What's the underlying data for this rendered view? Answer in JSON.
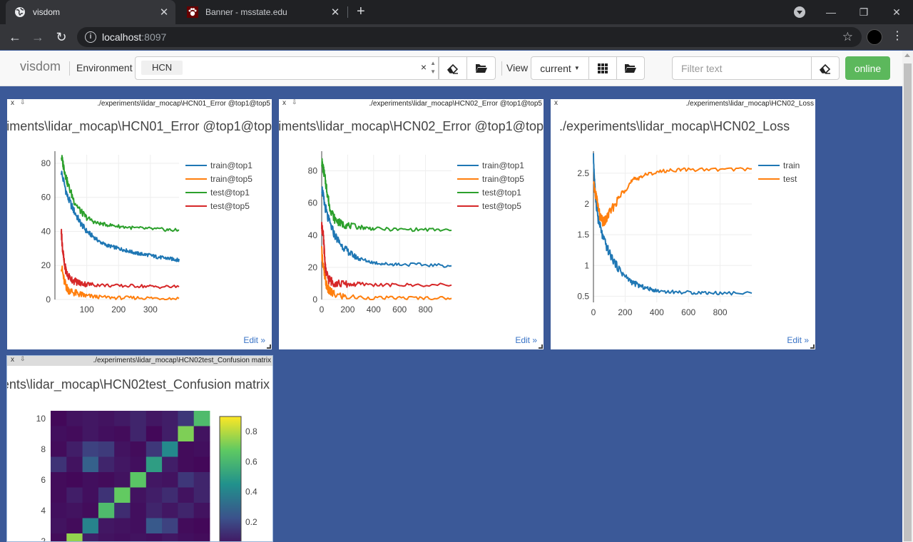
{
  "browser": {
    "tabs": [
      {
        "title": "visdom",
        "close": "✕"
      },
      {
        "title": "Banner - msstate.edu",
        "close": "✕"
      }
    ],
    "new_tab": "+",
    "window_controls": {
      "minimize": "—",
      "restore": "❐",
      "close": "✕"
    },
    "url_host": "localhost",
    "url_port": ":8097"
  },
  "app": {
    "brand": "visdom",
    "environment_label": "Environment",
    "environment_chip": "HCN",
    "environment_clear": "×",
    "view_label": "View",
    "view_select": "current",
    "filter_placeholder": "Filter text",
    "status_button": "online"
  },
  "panes": [
    {
      "path": "./experiments\\lidar_mocap\\HCN01_Error @top1@top5",
      "title": "./experiments\\lidar_mocap\\HCN01_Error @top1@top5",
      "edit": "Edit »"
    },
    {
      "path": "./experiments\\lidar_mocap\\HCN02_Error @top1@top5",
      "title": "./experiments\\lidar_mocap\\HCN02_Error @top1@top5",
      "edit": "Edit »"
    },
    {
      "path": "./experiments\\lidar_mocap\\HCN02_Loss",
      "title": "./experiments\\lidar_mocap\\HCN02_Loss",
      "edit": "Edit »"
    },
    {
      "path": "./experiments\\lidar_mocap\\HCN02test_Confusion matrix",
      "title": "./experiments\\lidar_mocap\\HCN02test_Confusion matrix"
    }
  ],
  "chart_data": [
    {
      "type": "line",
      "title": "./experiments\\lidar_mocap\\HCN01_Error @top1@top5",
      "xlim": [
        0,
        390
      ],
      "ylim": [
        0,
        85
      ],
      "xticks": [
        100,
        200,
        300
      ],
      "yticks": [
        0,
        20,
        40,
        60,
        80
      ],
      "legend": "top-right",
      "series": [
        {
          "name": "train@top1",
          "color": "#1f77b4",
          "x": [
            20,
            40,
            60,
            80,
            100,
            120,
            140,
            160,
            180,
            200,
            220,
            240,
            260,
            280,
            300,
            320,
            340,
            360,
            380,
            390
          ],
          "y": [
            75,
            60,
            52,
            45,
            40,
            37,
            34,
            32,
            31,
            30,
            29,
            28,
            27,
            26.5,
            26,
            25,
            24.5,
            24,
            23.5,
            23
          ]
        },
        {
          "name": "train@top5",
          "color": "#ff7f0e",
          "x": [
            20,
            30,
            40,
            60,
            80,
            100,
            140,
            200,
            260,
            320,
            390
          ],
          "y": [
            20,
            10,
            6,
            4,
            3,
            2,
            1.5,
            1,
            1,
            0.8,
            0.6
          ]
        },
        {
          "name": "test@top1",
          "color": "#2ca02c",
          "x": [
            20,
            30,
            40,
            60,
            80,
            100,
            130,
            160,
            200,
            250,
            300,
            350,
            390
          ],
          "y": [
            84,
            76,
            68,
            58,
            52,
            48,
            45,
            44,
            43,
            42,
            41.5,
            41,
            40.5
          ]
        },
        {
          "name": "test@top5",
          "color": "#d62728",
          "x": [
            20,
            24,
            30,
            40,
            60,
            80,
            100,
            140,
            200,
            260,
            320,
            390
          ],
          "y": [
            40,
            30,
            20,
            14,
            11,
            9.5,
            9,
            8.5,
            8,
            8,
            7.5,
            7.5
          ]
        }
      ]
    },
    {
      "type": "line",
      "title": "./experiments\\lidar_mocap\\HCN02_Error @top1@top5",
      "xlim": [
        0,
        1000
      ],
      "ylim": [
        0,
        90
      ],
      "xticks": [
        0,
        200,
        400,
        600,
        800
      ],
      "yticks": [
        0,
        20,
        40,
        60,
        80
      ],
      "legend": "top-right",
      "series": [
        {
          "name": "train@top1",
          "color": "#1f77b4",
          "x": [
            0,
            20,
            50,
            100,
            150,
            200,
            250,
            300,
            400,
            500,
            600,
            800,
            1000
          ],
          "y": [
            70,
            60,
            50,
            40,
            34,
            30,
            27,
            25,
            23,
            22,
            22,
            21.5,
            21
          ]
        },
        {
          "name": "train@top5",
          "color": "#ff7f0e",
          "x": [
            0,
            20,
            40,
            60,
            100,
            200,
            400,
            600,
            800,
            1000
          ],
          "y": [
            30,
            15,
            8,
            5,
            3,
            1.5,
            1,
            1,
            1,
            0.8
          ]
        },
        {
          "name": "test@top1",
          "color": "#2ca02c",
          "x": [
            0,
            20,
            40,
            60,
            100,
            150,
            200,
            300,
            400,
            600,
            800,
            1000
          ],
          "y": [
            86,
            78,
            68,
            58,
            50,
            47,
            46,
            45,
            44,
            43.5,
            43.5,
            43
          ]
        },
        {
          "name": "test@top5",
          "color": "#d62728",
          "x": [
            0,
            10,
            20,
            30,
            50,
            80,
            120,
            200,
            300,
            500,
            700,
            1000
          ],
          "y": [
            45,
            42,
            30,
            18,
            13,
            11,
            10,
            9.5,
            9.5,
            9,
            9,
            9
          ]
        }
      ]
    },
    {
      "type": "line",
      "title": "./experiments\\lidar_mocap\\HCN02_Loss",
      "xlim": [
        0,
        1000
      ],
      "ylim": [
        0.4,
        2.8
      ],
      "xticks": [
        0,
        200,
        400,
        600,
        800
      ],
      "yticks": [
        0.5,
        1,
        1.5,
        2,
        2.5
      ],
      "legend": "top-right",
      "series": [
        {
          "name": "train",
          "color": "#1f77b4",
          "x": [
            0,
            10,
            30,
            60,
            100,
            150,
            200,
            250,
            300,
            350,
            400,
            500,
            600,
            700,
            800,
            1000
          ],
          "y": [
            2.75,
            2.2,
            1.75,
            1.45,
            1.2,
            0.98,
            0.82,
            0.72,
            0.66,
            0.62,
            0.59,
            0.57,
            0.56,
            0.56,
            0.55,
            0.55
          ]
        },
        {
          "name": "test",
          "color": "#ff7f0e",
          "x": [
            0,
            20,
            40,
            60,
            80,
            100,
            150,
            200,
            250,
            300,
            400,
            500,
            600,
            800,
            1000
          ],
          "y": [
            2.3,
            2.1,
            1.8,
            1.7,
            1.75,
            1.85,
            2.05,
            2.25,
            2.38,
            2.45,
            2.52,
            2.55,
            2.56,
            2.56,
            2.57
          ]
        }
      ]
    },
    {
      "type": "heatmap",
      "title": "./experiments\\lidar_mocap\\HCN02test_Confusion matrix",
      "yticks": [
        2,
        4,
        6,
        8,
        10
      ],
      "colorbar_ticks": [
        0.2,
        0.4,
        0.6,
        0.8
      ],
      "colorbar_range": [
        0,
        0.9
      ],
      "rows_y": [
        10,
        9,
        8,
        7,
        6,
        5,
        4,
        3,
        2
      ],
      "columns": 10,
      "values": [
        [
          0.02,
          0.05,
          0.06,
          0.05,
          0.07,
          0.1,
          0.06,
          0.08,
          0.15,
          0.62
        ],
        [
          0.04,
          0.03,
          0.06,
          0.04,
          0.03,
          0.1,
          0.02,
          0.08,
          0.72,
          0.05
        ],
        [
          0.03,
          0.08,
          0.18,
          0.16,
          0.05,
          0.03,
          0.15,
          0.42,
          0.03,
          0.04
        ],
        [
          0.14,
          0.05,
          0.28,
          0.1,
          0.06,
          0.04,
          0.5,
          0.08,
          0.03,
          0.02
        ],
        [
          0.03,
          0.02,
          0.04,
          0.03,
          0.05,
          0.66,
          0.06,
          0.05,
          0.15,
          0.1
        ],
        [
          0.03,
          0.08,
          0.04,
          0.14,
          0.68,
          0.05,
          0.08,
          0.12,
          0.05,
          0.1
        ],
        [
          0.04,
          0.05,
          0.03,
          0.62,
          0.12,
          0.04,
          0.1,
          0.06,
          0.1,
          0.05
        ],
        [
          0.05,
          0.03,
          0.4,
          0.06,
          0.05,
          0.04,
          0.25,
          0.18,
          0.03,
          0.02
        ],
        [
          0.03,
          0.75,
          0.08,
          0.05,
          0.04,
          0.05,
          0.04,
          0.06,
          0.04,
          0.03
        ]
      ]
    }
  ]
}
